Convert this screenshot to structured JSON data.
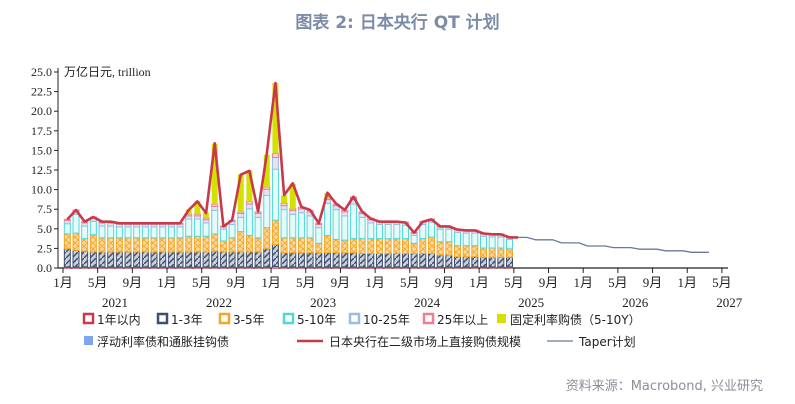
{
  "title": "图表 2:  日本央行 QT 计划",
  "source": "资料来源：Macrobond, 兴业研究",
  "chart_data": {
    "type": "bar",
    "stacked": true,
    "unit_label": "万亿日元, trillion",
    "ylim": [
      0,
      25
    ],
    "yticks": [
      0.0,
      2.5,
      5.0,
      7.5,
      10.0,
      12.5,
      15.0,
      17.5,
      20.0,
      22.5,
      25.0
    ],
    "x_start": "2021-01",
    "x_tick_labels": [
      "1月",
      "5月",
      "9月",
      "1月",
      "5月",
      "9月",
      "1月",
      "5月",
      "9月",
      "1月",
      "5月",
      "9月",
      "1月",
      "5月",
      "9月",
      "1月",
      "5月",
      "9月",
      "1月",
      "5月"
    ],
    "year_labels": [
      "2021",
      "2022",
      "2023",
      "2024",
      "2025",
      "2026",
      "2027"
    ],
    "categories": [
      "2021-01",
      "2021-02",
      "2021-03",
      "2021-04",
      "2021-05",
      "2021-06",
      "2021-07",
      "2021-08",
      "2021-09",
      "2021-10",
      "2021-11",
      "2021-12",
      "2022-01",
      "2022-02",
      "2022-03",
      "2022-04",
      "2022-05",
      "2022-06",
      "2022-07",
      "2022-08",
      "2022-09",
      "2022-10",
      "2022-11",
      "2022-12",
      "2023-01",
      "2023-02",
      "2023-03",
      "2023-04",
      "2023-05",
      "2023-06",
      "2023-07",
      "2023-08",
      "2023-09",
      "2023-10",
      "2023-11",
      "2023-12",
      "2024-01",
      "2024-02",
      "2024-03",
      "2024-04",
      "2024-05",
      "2024-06",
      "2024-07",
      "2024-08",
      "2024-09",
      "2024-10",
      "2024-11",
      "2024-12",
      "2025-01",
      "2025-02",
      "2025-03",
      "2025-04"
    ],
    "series": [
      {
        "name": "1年以内",
        "color": "#c8394a",
        "values": [
          0.15,
          0.15,
          0.15,
          0.15,
          0.15,
          0.15,
          0.15,
          0.15,
          0.15,
          0.15,
          0.15,
          0.15,
          0.15,
          0.15,
          0.15,
          0.15,
          0.15,
          0.15,
          0.15,
          0.15,
          0.15,
          0.15,
          0.15,
          0.15,
          0.2,
          0.15,
          0.15,
          0.15,
          0.15,
          0.15,
          0.15,
          0.15,
          0.15,
          0.15,
          0.15,
          0.15,
          0.15,
          0.15,
          0.15,
          0.15,
          0.15,
          0.15,
          0.15,
          0.15,
          0.15,
          0.15,
          0.15,
          0.15,
          0.15,
          0.15,
          0.15,
          0.15
        ]
      },
      {
        "name": "1-3年",
        "color": "#3f4f6f",
        "values": [
          2.3,
          2.1,
          2.0,
          1.9,
          1.9,
          1.9,
          1.9,
          1.9,
          1.9,
          1.9,
          1.9,
          1.9,
          1.9,
          1.9,
          1.9,
          1.9,
          1.9,
          2.0,
          1.9,
          1.9,
          1.9,
          1.9,
          1.9,
          2.3,
          2.8,
          1.8,
          1.8,
          1.8,
          1.8,
          1.8,
          1.8,
          1.8,
          1.8,
          1.8,
          1.7,
          1.7,
          1.7,
          1.7,
          1.7,
          1.7,
          1.7,
          1.7,
          1.7,
          1.5,
          1.5,
          1.3,
          1.3,
          1.3,
          1.2,
          1.2,
          1.2,
          1.2
        ]
      },
      {
        "name": "3-5年",
        "color": "#f5a623",
        "values": [
          1.9,
          2.2,
          1.6,
          2.2,
          1.8,
          1.8,
          1.8,
          1.8,
          1.8,
          1.8,
          1.8,
          1.8,
          1.8,
          1.8,
          2.0,
          2.0,
          2.0,
          2.2,
          1.4,
          1.8,
          2.6,
          2.1,
          1.8,
          2.7,
          3.1,
          1.9,
          1.9,
          1.9,
          1.9,
          1.2,
          2.2,
          1.7,
          1.6,
          1.8,
          1.9,
          1.9,
          1.9,
          1.9,
          1.9,
          1.9,
          1.3,
          1.9,
          2.1,
          1.7,
          1.7,
          1.4,
          1.4,
          1.4,
          1.2,
          1.2,
          1.2,
          1.1
        ]
      },
      {
        "name": "5-10年",
        "color": "#4fd8d8",
        "values": [
          1.3,
          2.4,
          1.6,
          1.7,
          1.5,
          1.5,
          1.4,
          1.4,
          1.4,
          1.4,
          1.4,
          1.4,
          1.4,
          1.4,
          2.2,
          2.2,
          1.7,
          3.0,
          1.5,
          1.7,
          1.8,
          3.4,
          2.6,
          4.1,
          6.5,
          3.6,
          3.0,
          3.2,
          2.8,
          2.0,
          4.1,
          3.8,
          3.1,
          4.4,
          2.7,
          2.0,
          1.8,
          1.8,
          1.8,
          1.7,
          1.0,
          1.8,
          1.9,
          1.6,
          1.6,
          1.7,
          1.6,
          1.6,
          1.5,
          1.4,
          1.4,
          1.2
        ]
      },
      {
        "name": "10-25年",
        "color": "#9dbde0",
        "values": [
          0.4,
          0.4,
          0.4,
          0.4,
          0.4,
          0.4,
          0.35,
          0.35,
          0.35,
          0.35,
          0.35,
          0.35,
          0.35,
          0.35,
          0.4,
          0.4,
          0.4,
          0.5,
          0.3,
          0.4,
          0.5,
          0.6,
          0.5,
          0.8,
          1.5,
          0.5,
          0.5,
          0.5,
          0.5,
          0.4,
          0.5,
          0.5,
          0.5,
          0.6,
          0.5,
          0.4,
          0.3,
          0.3,
          0.3,
          0.3,
          0.3,
          0.3,
          0.3,
          0.3,
          0.3,
          0.3,
          0.3,
          0.3,
          0.3,
          0.3,
          0.3,
          0.2
        ]
      },
      {
        "name": "25年以上",
        "color": "#f07e93",
        "values": [
          0.15,
          0.15,
          0.15,
          0.15,
          0.15,
          0.15,
          0.1,
          0.1,
          0.1,
          0.1,
          0.1,
          0.1,
          0.1,
          0.1,
          0.2,
          0.2,
          0.2,
          0.3,
          0.1,
          0.15,
          0.2,
          0.3,
          0.2,
          0.3,
          0.5,
          0.3,
          0.2,
          0.2,
          0.2,
          0.15,
          0.2,
          0.2,
          0.2,
          0.3,
          0.2,
          0.2,
          0.1,
          0.1,
          0.1,
          0.1,
          0.1,
          0.1,
          0.1,
          0.1,
          0.1,
          0.1,
          0.1,
          0.1,
          0.1,
          0.1,
          0.1,
          0.05
        ]
      },
      {
        "name": "固定利率购债（5-10Y）",
        "color": "#d4e000",
        "values": [
          0,
          0,
          0,
          0,
          0,
          0,
          0,
          0,
          0,
          0,
          0,
          0,
          0,
          0,
          0.6,
          1.7,
          0.7,
          7.7,
          0,
          0,
          4.8,
          4.0,
          0,
          4.1,
          9.0,
          1.0,
          3.2,
          0,
          0,
          0,
          0.6,
          0,
          0,
          0,
          0,
          0,
          0,
          0,
          0,
          0,
          0,
          0,
          0,
          0,
          0,
          0,
          0,
          0,
          0,
          0,
          0,
          0
        ]
      },
      {
        "name": "浮动利率债和通胀挂钩债",
        "color": "#7ea6f0",
        "values": [
          0,
          0,
          0,
          0,
          0,
          0,
          0,
          0,
          0,
          0,
          0,
          0,
          0,
          0,
          0,
          0,
          0,
          0,
          0,
          0,
          0,
          0,
          0,
          0,
          0,
          0,
          0,
          0,
          0,
          0,
          0,
          0,
          0,
          0,
          0,
          0,
          0,
          0,
          0,
          0,
          0,
          0,
          0,
          0,
          0,
          0,
          0,
          0,
          0,
          0,
          0,
          0
        ]
      }
    ],
    "lines": [
      {
        "name": "日本央行在二级市场上直接购债规模",
        "color": "#c8394a",
        "start": "2021-01",
        "values": [
          6.2,
          7.4,
          5.9,
          6.5,
          5.9,
          5.9,
          5.7,
          5.7,
          5.7,
          5.7,
          5.7,
          5.7,
          5.7,
          5.7,
          7.4,
          8.5,
          7.0,
          15.9,
          5.3,
          6.1,
          11.9,
          12.4,
          7.2,
          14.5,
          23.6,
          9.3,
          10.8,
          7.8,
          7.4,
          5.7,
          9.6,
          8.2,
          7.4,
          9.1,
          7.2,
          6.3,
          5.9,
          5.9,
          5.9,
          5.8,
          4.5,
          5.9,
          6.2,
          5.3,
          5.3,
          4.9,
          4.8,
          4.8,
          4.4,
          4.3,
          4.3,
          3.9,
          3.9
        ]
      },
      {
        "name": "Taper计划",
        "color": "#6a7a99",
        "start": "2025-05",
        "values": [
          3.9,
          3.9,
          3.6,
          3.6,
          3.6,
          3.2,
          3.2,
          3.2,
          2.8,
          2.8,
          2.8,
          2.6,
          2.6,
          2.6,
          2.4,
          2.4,
          2.4,
          2.2,
          2.2,
          2.2,
          2.0,
          2.0,
          2.0
        ]
      }
    ],
    "legend_position": "bottom",
    "grid": false
  }
}
